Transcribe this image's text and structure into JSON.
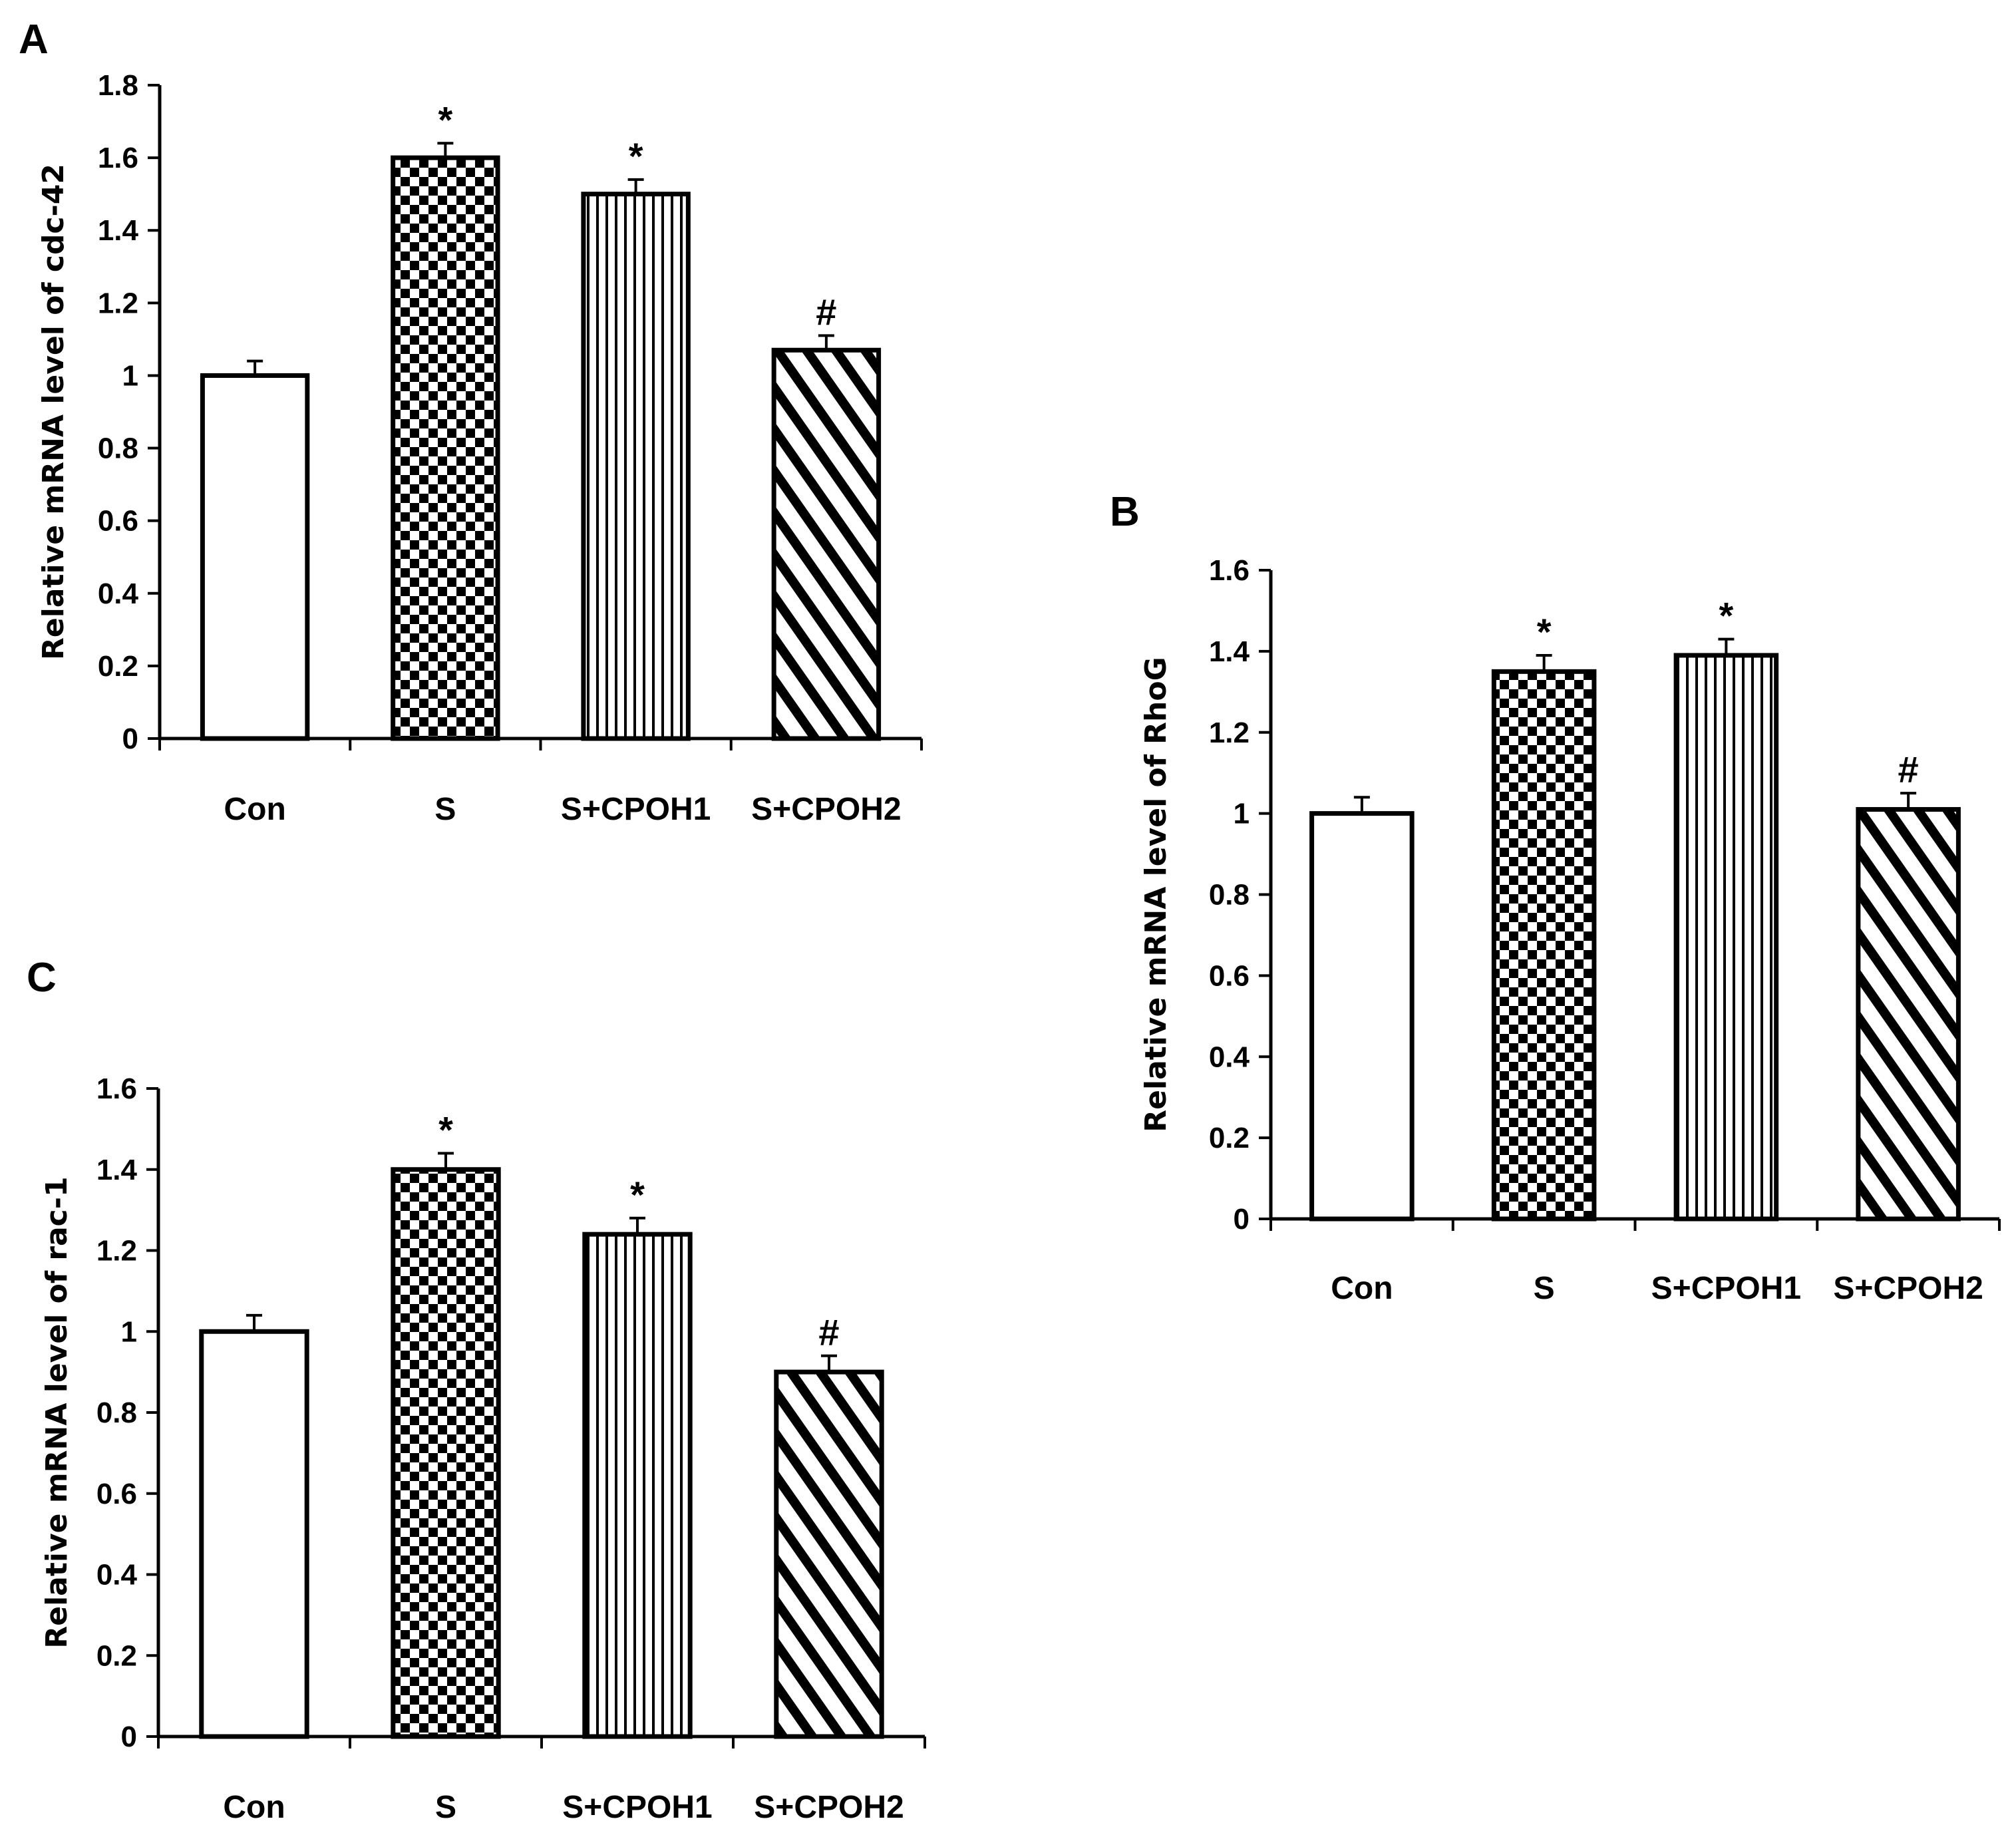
{
  "chart_data": [
    {
      "type": "bar",
      "panel": "A",
      "ylabel": "Relative mRNA level of cdc-42",
      "ylim": [
        0,
        1.8
      ],
      "yticks": [
        "0",
        "0.2",
        "0.4",
        "0.6",
        "0.8",
        "1",
        "1.2",
        "1.4",
        "1.6",
        "1.8"
      ],
      "categories": [
        "Con",
        "S",
        "S+CPOH1",
        "S+CPOH2"
      ],
      "values": [
        1.0,
        1.6,
        1.5,
        1.07
      ],
      "errors": [
        0.04,
        0.04,
        0.04,
        0.04
      ],
      "patterns": [
        "none",
        "checker",
        "vertical",
        "diagonal"
      ],
      "annotations": [
        "",
        "*",
        "*",
        "#"
      ]
    },
    {
      "type": "bar",
      "panel": "B",
      "ylabel": "Relative mRNA level of RhoG",
      "ylim": [
        0,
        1.6
      ],
      "yticks": [
        "0",
        "0.2",
        "0.4",
        "0.6",
        "0.8",
        "1",
        "1.2",
        "1.4",
        "1.6"
      ],
      "categories": [
        "Con",
        "S",
        "S+CPOH1",
        "S+CPOH2"
      ],
      "values": [
        1.0,
        1.35,
        1.39,
        1.01
      ],
      "errors": [
        0.04,
        0.04,
        0.04,
        0.04
      ],
      "patterns": [
        "none",
        "checker",
        "vertical",
        "diagonal"
      ],
      "annotations": [
        "",
        "*",
        "*",
        "#"
      ]
    },
    {
      "type": "bar",
      "panel": "C",
      "ylabel": "Relative mRNA level of rac-1",
      "ylim": [
        0,
        1.6
      ],
      "yticks": [
        "0",
        "0.2",
        "0.4",
        "0.6",
        "0.8",
        "1",
        "1.2",
        "1.4",
        "1.6"
      ],
      "categories": [
        "Con",
        "S",
        "S+CPOH1",
        "S+CPOH2"
      ],
      "values": [
        1.0,
        1.4,
        1.24,
        0.9
      ],
      "errors": [
        0.04,
        0.04,
        0.04,
        0.04
      ],
      "patterns": [
        "none",
        "checker",
        "vertical",
        "diagonal"
      ],
      "annotations": [
        "",
        "*",
        "*",
        "#"
      ]
    }
  ],
  "colors": {
    "ink": "#000000",
    "background": "#ffffff"
  }
}
